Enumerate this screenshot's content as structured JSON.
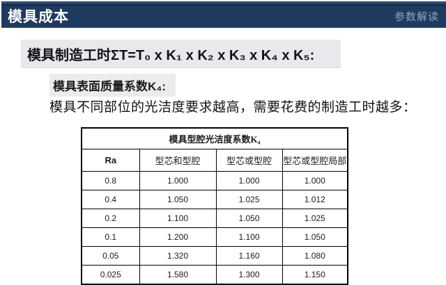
{
  "header": {
    "title": "模具成本",
    "right_label": "参数解读"
  },
  "formula": "模具制造工时ΣT=T₀ x K₁ x K₂ x K₃ x K₄ x K₅:",
  "subtitle": "模具表面质量系数K₄:",
  "description": "模具不同部位的光洁度要求越高，需要花费的制造工时越多：",
  "table": {
    "title": "模具型腔光洁度系数K₄",
    "columns": [
      "Ra",
      "型芯和型腔",
      "型芯或型腔",
      "型芯或型腔局部"
    ],
    "rows": [
      [
        "0.8",
        "1.000",
        "1.000",
        "1.000"
      ],
      [
        "0.4",
        "1.050",
        "1.025",
        "1.012"
      ],
      [
        "0.2",
        "1.100",
        "1.050",
        "1.025"
      ],
      [
        "0.1",
        "1.200",
        "1.100",
        "1.050"
      ],
      [
        "0.05",
        "1.320",
        "1.160",
        "1.080"
      ],
      [
        "0.025",
        "1.580",
        "1.300",
        "1.150"
      ]
    ]
  },
  "colors": {
    "topbar_bg": "#1e3a5e",
    "topbar_right_text": "#8da5c1",
    "formula_bg": "#e8e9ed",
    "subtitle_bg": "#ececee",
    "table_border": "#000000",
    "page_bg": "#ffffff"
  }
}
